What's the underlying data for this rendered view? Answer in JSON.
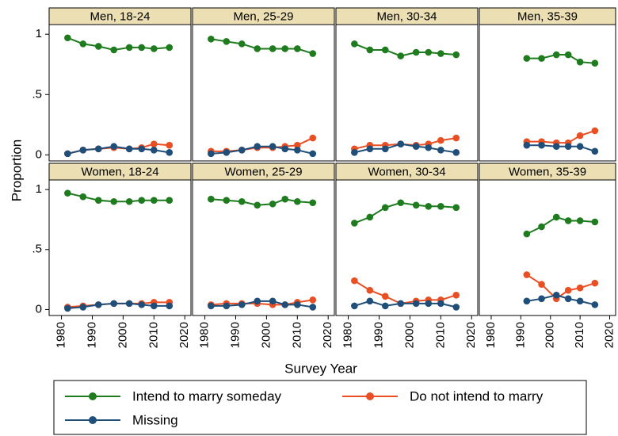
{
  "ylabel": "Proportion",
  "xlabel": "Survey Year",
  "chart_data": [
    {
      "type": "line",
      "title": "Men, 18-24",
      "x": [
        1982,
        1987,
        1992,
        1997,
        2002,
        2006,
        2010,
        2015
      ],
      "xlim": [
        1976,
        2022
      ],
      "ylim": [
        -0.05,
        1.08
      ],
      "yticks": [
        0,
        {
          "value": 0.5,
          "label": ".5"
        },
        1
      ],
      "series": [
        {
          "name": "Intend to marry someday",
          "color": "#1e7b1e",
          "values": [
            0.97,
            0.92,
            0.9,
            0.87,
            0.89,
            0.89,
            0.88,
            0.89
          ]
        },
        {
          "name": "Do not intend to marry",
          "color": "#ea4f24",
          "values": [
            0.01,
            0.04,
            0.05,
            0.06,
            0.05,
            0.06,
            0.09,
            0.08
          ]
        },
        {
          "name": "Missing",
          "color": "#1f4e79",
          "values": [
            0.01,
            0.04,
            0.05,
            0.07,
            0.05,
            0.05,
            0.04,
            0.02
          ]
        }
      ]
    },
    {
      "type": "line",
      "title": "Men, 25-29",
      "x": [
        1982,
        1987,
        1992,
        1997,
        2002,
        2006,
        2010,
        2015
      ],
      "xlim": [
        1976,
        2022
      ],
      "ylim": [
        -0.05,
        1.08
      ],
      "series": [
        {
          "name": "Intend to marry someday",
          "color": "#1e7b1e",
          "values": [
            0.96,
            0.94,
            0.92,
            0.88,
            0.88,
            0.88,
            0.88,
            0.84
          ]
        },
        {
          "name": "Do not intend to marry",
          "color": "#ea4f24",
          "values": [
            0.03,
            0.03,
            0.04,
            0.06,
            0.06,
            0.07,
            0.08,
            0.14
          ]
        },
        {
          "name": "Missing",
          "color": "#1f4e79",
          "values": [
            0.01,
            0.02,
            0.04,
            0.07,
            0.07,
            0.05,
            0.04,
            0.01
          ]
        }
      ]
    },
    {
      "type": "line",
      "title": "Men, 30-34",
      "x": [
        1982,
        1987,
        1992,
        1997,
        2002,
        2006,
        2010,
        2015
      ],
      "xlim": [
        1976,
        2022
      ],
      "ylim": [
        -0.05,
        1.08
      ],
      "series": [
        {
          "name": "Intend to marry someday",
          "color": "#1e7b1e",
          "values": [
            0.92,
            0.87,
            0.87,
            0.82,
            0.85,
            0.85,
            0.84,
            0.83
          ]
        },
        {
          "name": "Do not intend to marry",
          "color": "#ea4f24",
          "values": [
            0.05,
            0.08,
            0.08,
            0.09,
            0.08,
            0.09,
            0.12,
            0.14
          ]
        },
        {
          "name": "Missing",
          "color": "#1f4e79",
          "values": [
            0.02,
            0.05,
            0.05,
            0.09,
            0.07,
            0.06,
            0.04,
            0.02
          ]
        }
      ]
    },
    {
      "type": "line",
      "title": "Men, 35-39",
      "x": [
        1992,
        1997,
        2002,
        2006,
        2010,
        2015
      ],
      "xlim": [
        1976,
        2022
      ],
      "ylim": [
        -0.05,
        1.08
      ],
      "series": [
        {
          "name": "Intend to marry someday",
          "color": "#1e7b1e",
          "values": [
            0.8,
            0.8,
            0.83,
            0.83,
            0.77,
            0.76
          ]
        },
        {
          "name": "Do not intend to marry",
          "color": "#ea4f24",
          "values": [
            0.11,
            0.11,
            0.1,
            0.1,
            0.16,
            0.2
          ]
        },
        {
          "name": "Missing",
          "color": "#1f4e79",
          "values": [
            0.08,
            0.08,
            0.07,
            0.07,
            0.07,
            0.03
          ]
        }
      ]
    },
    {
      "type": "line",
      "title": "Women, 18-24",
      "x": [
        1982,
        1987,
        1992,
        1997,
        2002,
        2006,
        2010,
        2015
      ],
      "xlim": [
        1976,
        2022
      ],
      "ylim": [
        -0.05,
        1.08
      ],
      "yticks": [
        0,
        {
          "value": 0.5,
          "label": ".5"
        },
        1
      ],
      "xticks": [
        1980,
        1990,
        2000,
        2010,
        2020
      ],
      "series": [
        {
          "name": "Intend to marry someday",
          "color": "#1e7b1e",
          "values": [
            0.97,
            0.94,
            0.91,
            0.9,
            0.9,
            0.91,
            0.91,
            0.91
          ]
        },
        {
          "name": "Do not intend to marry",
          "color": "#ea4f24",
          "values": [
            0.02,
            0.03,
            0.04,
            0.05,
            0.05,
            0.05,
            0.06,
            0.06
          ]
        },
        {
          "name": "Missing",
          "color": "#1f4e79",
          "values": [
            0.01,
            0.02,
            0.04,
            0.05,
            0.05,
            0.04,
            0.03,
            0.03
          ]
        }
      ]
    },
    {
      "type": "line",
      "title": "Women, 25-29",
      "x": [
        1982,
        1987,
        1992,
        1997,
        2002,
        2006,
        2010,
        2015
      ],
      "xlim": [
        1976,
        2022
      ],
      "ylim": [
        -0.05,
        1.08
      ],
      "xticks": [
        1980,
        1990,
        2000,
        2010,
        2020
      ],
      "series": [
        {
          "name": "Intend to marry someday",
          "color": "#1e7b1e",
          "values": [
            0.92,
            0.91,
            0.9,
            0.87,
            0.88,
            0.92,
            0.9,
            0.89
          ]
        },
        {
          "name": "Do not intend to marry",
          "color": "#ea4f24",
          "values": [
            0.04,
            0.05,
            0.05,
            0.05,
            0.04,
            0.04,
            0.06,
            0.08
          ]
        },
        {
          "name": "Missing",
          "color": "#1f4e79",
          "values": [
            0.03,
            0.03,
            0.04,
            0.07,
            0.07,
            0.04,
            0.04,
            0.02
          ]
        }
      ]
    },
    {
      "type": "line",
      "title": "Women, 30-34",
      "x": [
        1982,
        1987,
        1992,
        1997,
        2002,
        2006,
        2010,
        2015
      ],
      "xlim": [
        1976,
        2022
      ],
      "ylim": [
        -0.05,
        1.08
      ],
      "xticks": [
        1980,
        1990,
        2000,
        2010,
        2020
      ],
      "series": [
        {
          "name": "Intend to marry someday",
          "color": "#1e7b1e",
          "values": [
            0.72,
            0.77,
            0.85,
            0.89,
            0.87,
            0.86,
            0.86,
            0.85
          ]
        },
        {
          "name": "Do not intend to marry",
          "color": "#ea4f24",
          "values": [
            0.24,
            0.16,
            0.11,
            0.05,
            0.07,
            0.08,
            0.08,
            0.12
          ]
        },
        {
          "name": "Missing",
          "color": "#1f4e79",
          "values": [
            0.03,
            0.07,
            0.03,
            0.05,
            0.05,
            0.05,
            0.05,
            0.02
          ]
        }
      ]
    },
    {
      "type": "line",
      "title": "Women, 35-39",
      "x": [
        1992,
        1997,
        2002,
        2006,
        2010,
        2015
      ],
      "xlim": [
        1976,
        2022
      ],
      "ylim": [
        -0.05,
        1.08
      ],
      "xticks": [
        1980,
        1990,
        2000,
        2010,
        2020
      ],
      "series": [
        {
          "name": "Intend to marry someday",
          "color": "#1e7b1e",
          "values": [
            0.63,
            0.69,
            0.77,
            0.74,
            0.74,
            0.73
          ]
        },
        {
          "name": "Do not intend to marry",
          "color": "#ea4f24",
          "values": [
            0.29,
            0.21,
            0.09,
            0.16,
            0.18,
            0.22
          ]
        },
        {
          "name": "Missing",
          "color": "#1f4e79",
          "values": [
            0.07,
            0.09,
            0.12,
            0.09,
            0.07,
            0.04
          ]
        }
      ]
    }
  ]
}
